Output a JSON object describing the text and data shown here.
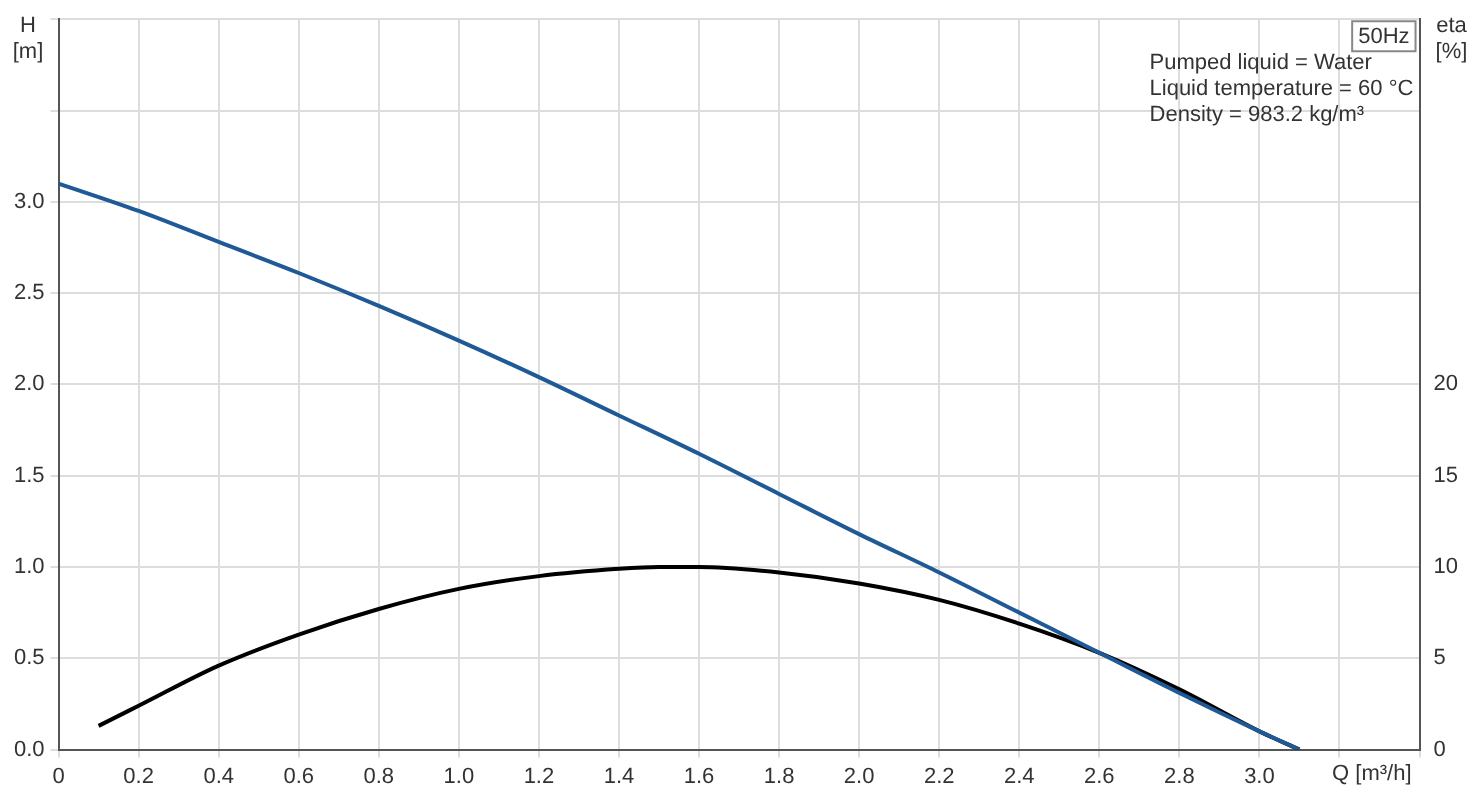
{
  "chart_data": {
    "type": "line",
    "xlabel": "Q [m³/h]",
    "ylabel": "H [m]",
    "y2label": "eta [%]",
    "annotations": [
      "50Hz",
      "Pumped liquid = Water",
      "Liquid temperature = 60 °C",
      "Density = 983.2 kg/m³"
    ],
    "xlim": [
      0,
      3.4
    ],
    "xticks": [
      0,
      0.2,
      0.4,
      0.6,
      0.8,
      {
        "value": 1,
        "label": "1.0"
      },
      1.2,
      1.4,
      1.6,
      1.8,
      {
        "value": 2,
        "label": "2.0"
      },
      2.2,
      2.4,
      2.6,
      2.8,
      {
        "value": 3,
        "label": "3.0"
      },
      {
        "value": 3.2,
        "label": null
      },
      {
        "value": 3.4,
        "label": null
      }
    ],
    "ylim": [
      0,
      4
    ],
    "yticks": [
      {
        "value": 0,
        "label": "0.0"
      },
      0.5,
      {
        "value": 1,
        "label": "1.0"
      },
      1.5,
      {
        "value": 2,
        "label": "2.0"
      },
      2.5,
      {
        "value": 3,
        "label": "3.0"
      },
      {
        "value": 3.5,
        "label": null
      },
      {
        "value": 4.0,
        "label": null
      }
    ],
    "y2lim": [
      0,
      40
    ],
    "y2ticks": [
      0,
      5,
      10,
      15,
      20
    ],
    "grid": true,
    "legend": false,
    "marker": "none",
    "line_style": "solid",
    "series": [
      {
        "color": "#1f5a96",
        "x": [
          0,
          0.2,
          0.4,
          0.6,
          0.8,
          1.0,
          1.2,
          1.4,
          1.6,
          1.8,
          2.0,
          2.2,
          2.4,
          2.6,
          2.8,
          3.0,
          3.1
        ],
        "values": [
          3.1,
          2.95,
          2.78,
          2.61,
          2.43,
          2.24,
          2.04,
          1.83,
          1.62,
          1.4,
          1.18,
          0.97,
          0.75,
          0.53,
          0.31,
          0.1,
          0
        ]
      },
      {
        "color": "#000000",
        "axis": "y2",
        "x": [
          0.1,
          0.2,
          0.4,
          0.6,
          0.8,
          1.0,
          1.2,
          1.4,
          1.5,
          1.6,
          1.8,
          2.0,
          2.2,
          2.4,
          2.6,
          2.8,
          3.0,
          3.1
        ],
        "values": [
          1.3,
          2.4,
          4.6,
          6.3,
          7.7,
          8.8,
          9.5,
          9.9,
          10.0,
          10.0,
          9.7,
          9.1,
          8.2,
          6.9,
          5.3,
          3.3,
          1.0,
          0
        ]
      }
    ]
  }
}
